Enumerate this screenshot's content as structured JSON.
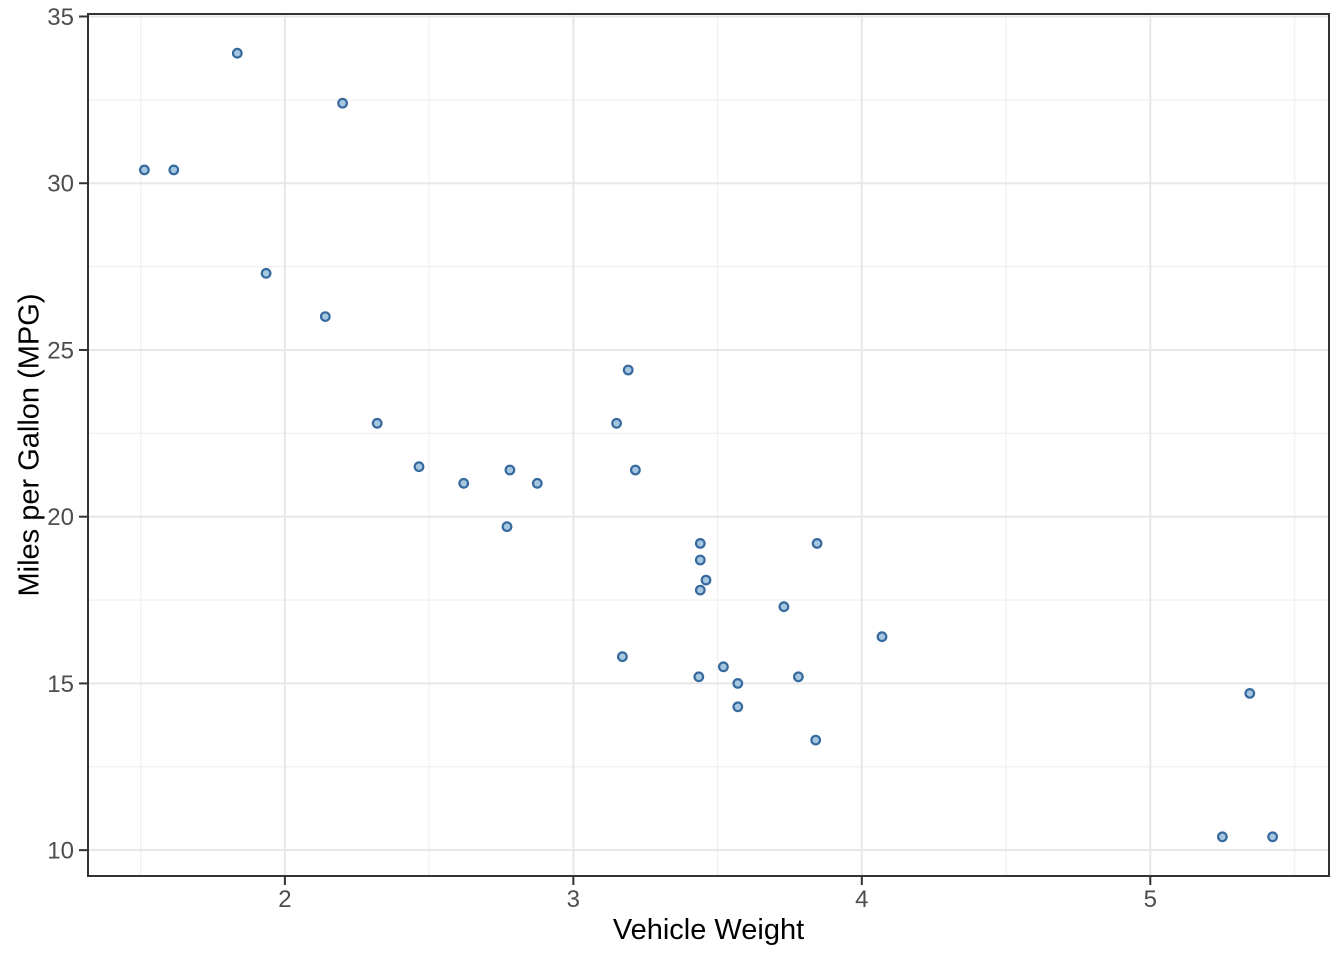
{
  "chart_data": {
    "type": "scatter",
    "title": "",
    "xlabel": "Vehicle Weight",
    "ylabel": "Miles per Gallon (MPG)",
    "x_ticks": [
      2,
      3,
      4,
      5
    ],
    "y_ticks": [
      10,
      15,
      20,
      25,
      30,
      35
    ],
    "x_minor_ticks": [
      1.5,
      2.5,
      3.5,
      4.5,
      5.5
    ],
    "y_minor_ticks": [
      12.5,
      17.5,
      22.5,
      27.5,
      32.5
    ],
    "xlim": [
      1.3175,
      5.6195
    ],
    "ylim": [
      9.225,
      35.075
    ],
    "grid": "major+minor",
    "legend": "none",
    "points": [
      {
        "x": 2.62,
        "y": 21.0
      },
      {
        "x": 2.875,
        "y": 21.0
      },
      {
        "x": 2.32,
        "y": 22.8
      },
      {
        "x": 3.215,
        "y": 21.4
      },
      {
        "x": 3.44,
        "y": 18.7
      },
      {
        "x": 3.46,
        "y": 18.1
      },
      {
        "x": 3.57,
        "y": 14.3
      },
      {
        "x": 3.19,
        "y": 24.4
      },
      {
        "x": 3.15,
        "y": 22.8
      },
      {
        "x": 3.44,
        "y": 19.2
      },
      {
        "x": 3.44,
        "y": 17.8
      },
      {
        "x": 4.07,
        "y": 16.4
      },
      {
        "x": 3.73,
        "y": 17.3
      },
      {
        "x": 3.78,
        "y": 15.2
      },
      {
        "x": 5.25,
        "y": 10.4
      },
      {
        "x": 5.424,
        "y": 10.4
      },
      {
        "x": 5.345,
        "y": 14.7
      },
      {
        "x": 2.2,
        "y": 32.4
      },
      {
        "x": 1.615,
        "y": 30.4
      },
      {
        "x": 1.835,
        "y": 33.9
      },
      {
        "x": 2.465,
        "y": 21.5
      },
      {
        "x": 3.52,
        "y": 15.5
      },
      {
        "x": 3.435,
        "y": 15.2
      },
      {
        "x": 3.84,
        "y": 13.3
      },
      {
        "x": 3.845,
        "y": 19.2
      },
      {
        "x": 1.935,
        "y": 27.3
      },
      {
        "x": 2.14,
        "y": 26.0
      },
      {
        "x": 1.513,
        "y": 30.4
      },
      {
        "x": 3.17,
        "y": 15.8
      },
      {
        "x": 2.77,
        "y": 19.7
      },
      {
        "x": 3.57,
        "y": 15.0
      },
      {
        "x": 2.78,
        "y": 21.4
      }
    ]
  },
  "colors": {
    "background": "#ffffff",
    "panel_background": "#ffffff",
    "panel_border": "#333333",
    "grid_major": "#e7e7e7",
    "grid_minor": "#f1f1f1",
    "tick_mark": "#333333",
    "tick_label": "#4d4d4d",
    "axis_title": "#000000",
    "point_fill": "#a6c7e0",
    "point_stroke": "#36699e"
  }
}
